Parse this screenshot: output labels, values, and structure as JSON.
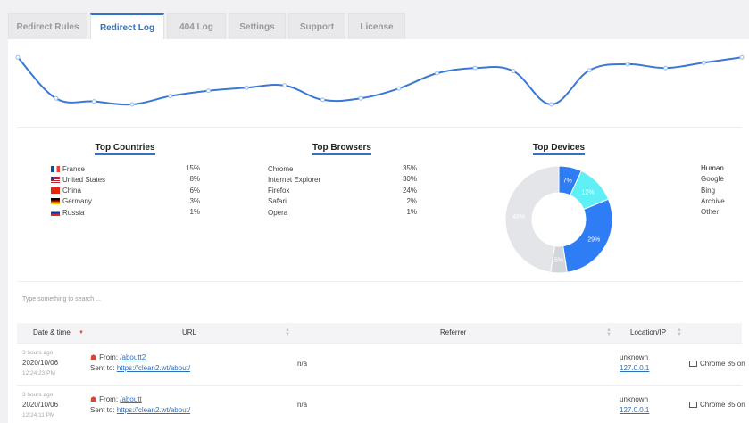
{
  "tabs": [
    {
      "label": "Redirect Rules",
      "active": false
    },
    {
      "label": "Redirect Log",
      "active": true
    },
    {
      "label": "404 Log",
      "active": false
    },
    {
      "label": "Settings",
      "active": false
    },
    {
      "label": "Support",
      "active": false
    },
    {
      "label": "License",
      "active": false
    }
  ],
  "chart_data": {
    "type": "line",
    "series": [
      {
        "values": [
          82,
          28,
          24,
          20,
          31,
          38,
          42,
          45,
          26,
          28,
          41,
          61,
          68,
          64,
          20,
          65,
          73,
          68,
          75,
          82
        ]
      }
    ],
    "title": "",
    "xlabel": "",
    "ylabel": "",
    "ylim": [
      0,
      100
    ],
    "color": "#3a78d6",
    "grid": false
  },
  "top_countries": {
    "title": "Top Countries",
    "items": [
      {
        "flag": "fr",
        "name": "France",
        "pct": "15%"
      },
      {
        "flag": "us",
        "name": "United States",
        "pct": "8%"
      },
      {
        "flag": "cn",
        "name": "China",
        "pct": "6%"
      },
      {
        "flag": "de",
        "name": "Germany",
        "pct": "3%"
      },
      {
        "flag": "ru",
        "name": "Russia",
        "pct": "1%"
      }
    ]
  },
  "top_browsers": {
    "title": "Top Browsers",
    "items": [
      {
        "name": "Chrome",
        "pct": "35%"
      },
      {
        "name": "Internet Explorer",
        "pct": "30%"
      },
      {
        "name": "Firefox",
        "pct": "24%"
      },
      {
        "name": "Safari",
        "pct": "2%"
      },
      {
        "name": "Opera",
        "pct": "1%"
      }
    ]
  },
  "top_devices": {
    "title": "Top Devices",
    "donut": [
      {
        "label": "7%",
        "value": 7,
        "color": "#2f7df5"
      },
      {
        "label": "12%",
        "value": 12,
        "color": "#5ff0f7"
      },
      {
        "label": "29%",
        "value": 29,
        "color": "#2f7df5"
      },
      {
        "label": "5%",
        "value": 5,
        "color": "#d2d5da"
      },
      {
        "label": "48%",
        "value": 48,
        "color": "#e3e5e8"
      }
    ],
    "legend": [
      "Human",
      "Google",
      "Bing",
      "Archive",
      "Other"
    ]
  },
  "search": {
    "placeholder": "Type something to search ..."
  },
  "table": {
    "headers": {
      "date": "Date & time",
      "url": "URL",
      "referrer": "Referrer",
      "location": "Location/IP"
    },
    "rows": [
      {
        "ago": "3 hours ago",
        "date": "2020/10/06",
        "time": "12:24:23 PM",
        "from_label": "From:",
        "from": "/aboutt2",
        "to_label": "Sent to:",
        "to": "https://clean2.wt/about/",
        "referrer": "n/a",
        "location": "unknown",
        "ip": "127.0.0.1",
        "agent": "Chrome 85 on"
      },
      {
        "ago": "3 hours ago",
        "date": "2020/10/06",
        "time": "12:24:11 PM",
        "from_label": "From:",
        "from": "/aboutt",
        "to_label": "Sent to:",
        "to": "https://clean2.wt/about/",
        "referrer": "n/a",
        "location": "unknown",
        "ip": "127.0.0.1",
        "agent": "Chrome 85 on"
      }
    ]
  }
}
